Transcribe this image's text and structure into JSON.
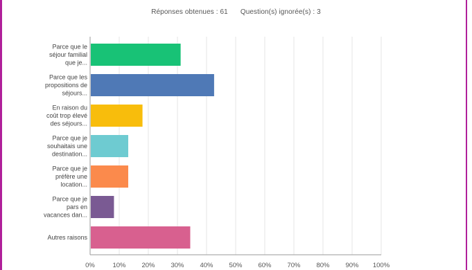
{
  "stats": {
    "responses": "Réponses obtenues : 61",
    "skipped": "Question(s) ignorée(s) : 3"
  },
  "colors": {
    "frame": "#b01f9a",
    "grid": "#e6e6e6",
    "axis": "#999999"
  },
  "chart_data": {
    "type": "bar",
    "orientation": "horizontal",
    "categories": [
      [
        "Parce que le",
        "séjour familial",
        "que je..."
      ],
      [
        "Parce que les",
        "propositions de",
        "séjours..."
      ],
      [
        "En raison du",
        "coût trop élevé",
        "des séjours..."
      ],
      [
        "Parce que je",
        "souhaitais une",
        "destination..."
      ],
      [
        "Parce que je",
        "préfère une",
        "location..."
      ],
      [
        "Parce que je",
        "pars en",
        "vacances dan..."
      ],
      [
        "Autres raisons"
      ]
    ],
    "values": [
      31.1,
      42.6,
      18.0,
      13.1,
      13.1,
      8.2,
      34.4
    ],
    "bar_colors": [
      "#18c276",
      "#4f79b6",
      "#f8bd0c",
      "#6ecbd1",
      "#fb8a4c",
      "#7a5a93",
      "#d8608f"
    ],
    "xlim": [
      0,
      100
    ],
    "xticks": [
      "0%",
      "10%",
      "20%",
      "30%",
      "40%",
      "50%",
      "60%",
      "70%",
      "80%",
      "90%",
      "100%"
    ],
    "grid": true
  }
}
